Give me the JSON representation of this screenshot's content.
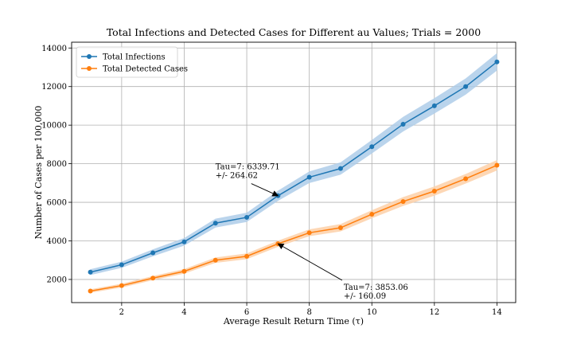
{
  "chart_data": {
    "type": "line",
    "title": "Total Infections and Detected Cases for Different au Values; Trials = 2000",
    "xlabel": "Average Result Return Time (τ)",
    "ylabel": "Number of Cases per 100,000",
    "xlim": [
      0.4,
      14.6
    ],
    "ylim": [
      800,
      14300
    ],
    "xticks": [
      2,
      4,
      6,
      8,
      10,
      12,
      14
    ],
    "yticks": [
      2000,
      4000,
      6000,
      8000,
      10000,
      12000,
      14000
    ],
    "grid": true,
    "legend_position": "top-left",
    "x": [
      1,
      2,
      3,
      4,
      5,
      6,
      7,
      8,
      9,
      10,
      11,
      12,
      13,
      14
    ],
    "series": [
      {
        "name": "Total Infections",
        "color": "#1f77b4",
        "band_color": "#aecde9",
        "values": [
          2380,
          2760,
          3380,
          3950,
          4920,
          5220,
          6340,
          7300,
          7750,
          8880,
          10050,
          11000,
          12000,
          13280
        ],
        "band": [
          150,
          160,
          180,
          200,
          230,
          240,
          265,
          300,
          320,
          350,
          380,
          400,
          420,
          450
        ]
      },
      {
        "name": "Total Detected  Cases",
        "color": "#ff7f0e",
        "band_color": "#fdd0a8",
        "values": [
          1400,
          1680,
          2070,
          2420,
          3000,
          3200,
          3850,
          4420,
          4680,
          5380,
          6040,
          6580,
          7220,
          7920
        ],
        "band": [
          90,
          100,
          110,
          120,
          140,
          150,
          160,
          180,
          190,
          210,
          230,
          240,
          250,
          270
        ]
      }
    ],
    "annotations": [
      {
        "line1": "Tau=7: 6339.71",
        "line2": "+/- 264.62",
        "text_at": [
          5.0,
          7300
        ],
        "point": [
          7,
          6340
        ]
      },
      {
        "line1": "Tau=7: 3853.06",
        "line2": "+/- 160.09",
        "text_at": [
          9.1,
          1050
        ],
        "point": [
          7,
          3850
        ]
      }
    ]
  }
}
